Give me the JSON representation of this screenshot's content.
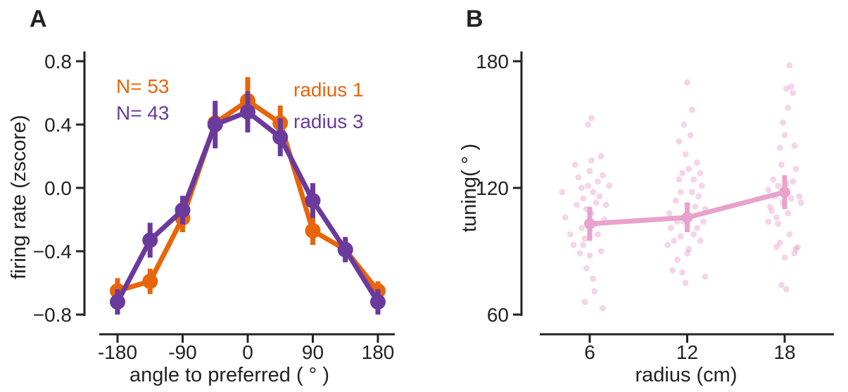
{
  "chart_data": [
    {
      "panel": "A",
      "type": "line",
      "xlabel": "angle to preferred ( ° )",
      "ylabel": "firing rate (zscore)",
      "xlim": [
        -180,
        180
      ],
      "ylim": [
        -0.8,
        0.8
      ],
      "xticks": [
        -180,
        -90,
        0,
        90,
        180
      ],
      "xtick_labels": [
        "-180",
        "-90",
        "0",
        "90",
        "180"
      ],
      "yticks": [
        -0.8,
        -0.4,
        0.0,
        0.4,
        0.8
      ],
      "ytick_labels": [
        "−0.8",
        "−0.4",
        "0.0",
        "0.4",
        "0.8"
      ],
      "x": [
        -180,
        -135,
        -90,
        -45,
        0,
        45,
        90,
        135,
        180
      ],
      "series": [
        {
          "name": "radius 1",
          "n_label": "N= 53",
          "color": "#e8650a",
          "values": [
            -0.65,
            -0.59,
            -0.19,
            0.41,
            0.55,
            0.41,
            -0.27,
            -0.39,
            -0.65
          ],
          "errors": [
            0.08,
            0.08,
            0.09,
            0.07,
            0.15,
            0.11,
            0.09,
            0.07,
            0.06
          ]
        },
        {
          "name": "radius 3",
          "n_label": "N= 43",
          "color": "#6a3a9c",
          "values": [
            -0.72,
            -0.33,
            -0.14,
            0.4,
            0.48,
            0.32,
            -0.08,
            -0.39,
            -0.72
          ],
          "errors": [
            0.08,
            0.11,
            0.09,
            0.15,
            0.13,
            0.12,
            0.11,
            0.08,
            0.08
          ]
        }
      ]
    },
    {
      "panel": "B",
      "type": "scatter",
      "xlabel": "radius (cm)",
      "ylabel": "tuning( ° )",
      "xlim": [
        1,
        23
      ],
      "ylim": [
        60,
        180
      ],
      "xticks": [
        6,
        12,
        18
      ],
      "xtick_labels": [
        "6",
        "12",
        "18"
      ],
      "yticks": [
        60,
        120,
        180
      ],
      "ytick_labels": [
        "60",
        "120",
        "180"
      ],
      "color": "#e8a2cc",
      "mean": {
        "x": [
          6,
          12,
          18
        ],
        "values": [
          103,
          106,
          118
        ],
        "errors": [
          8,
          7,
          8
        ]
      },
      "points": [
        [
          4.3,
          118
        ],
        [
          4.5,
          106
        ],
        [
          4.8,
          98
        ],
        [
          5.0,
          93
        ],
        [
          5.1,
          131
        ],
        [
          5.2,
          112
        ],
        [
          5.3,
          125
        ],
        [
          5.4,
          89
        ],
        [
          5.5,
          120
        ],
        [
          5.5,
          101
        ],
        [
          5.6,
          115
        ],
        [
          5.7,
          96
        ],
        [
          5.8,
          110
        ],
        [
          5.8,
          82
        ],
        [
          5.9,
          121
        ],
        [
          5.9,
          150
        ],
        [
          6.0,
          128
        ],
        [
          6.0,
          88
        ],
        [
          6.1,
          153
        ],
        [
          6.1,
          108
        ],
        [
          6.1,
          133
        ],
        [
          6.2,
          77
        ],
        [
          6.2,
          118
        ],
        [
          6.3,
          71
        ],
        [
          6.3,
          103
        ],
        [
          6.4,
          113
        ],
        [
          6.5,
          123
        ],
        [
          6.5,
          98
        ],
        [
          6.6,
          116
        ],
        [
          6.7,
          90
        ],
        [
          6.7,
          135
        ],
        [
          6.8,
          126
        ],
        [
          6.8,
          63
        ],
        [
          6.9,
          105
        ],
        [
          7.0,
          112
        ],
        [
          7.2,
          121
        ],
        [
          5.6,
          93
        ],
        [
          5.7,
          66
        ],
        [
          10.8,
          93
        ],
        [
          10.9,
          108
        ],
        [
          11.0,
          101
        ],
        [
          11.1,
          81
        ],
        [
          11.2,
          95
        ],
        [
          11.3,
          114
        ],
        [
          11.4,
          86
        ],
        [
          11.5,
          124
        ],
        [
          11.5,
          142
        ],
        [
          11.6,
          118
        ],
        [
          11.6,
          97
        ],
        [
          11.7,
          80
        ],
        [
          11.7,
          127
        ],
        [
          11.8,
          104
        ],
        [
          11.8,
          150
        ],
        [
          11.9,
          136
        ],
        [
          11.9,
          75
        ],
        [
          12.0,
          112
        ],
        [
          12.0,
          170
        ],
        [
          12.1,
          91
        ],
        [
          12.1,
          129
        ],
        [
          12.2,
          106
        ],
        [
          12.2,
          145
        ],
        [
          12.3,
          118
        ],
        [
          12.3,
          157
        ],
        [
          12.4,
          98
        ],
        [
          12.4,
          124
        ],
        [
          12.5,
          111
        ],
        [
          12.6,
          132
        ],
        [
          12.6,
          101
        ],
        [
          12.7,
          116
        ],
        [
          12.8,
          127
        ],
        [
          12.8,
          95
        ],
        [
          12.9,
          121
        ],
        [
          13.0,
          104
        ],
        [
          13.1,
          110
        ],
        [
          13.1,
          78
        ],
        [
          12.0,
          89
        ],
        [
          11.4,
          104
        ],
        [
          17.0,
          119
        ],
        [
          17.0,
          104
        ],
        [
          17.1,
          111
        ],
        [
          17.2,
          109
        ],
        [
          17.3,
          124
        ],
        [
          17.4,
          116
        ],
        [
          17.5,
          106
        ],
        [
          17.5,
          92
        ],
        [
          17.6,
          103
        ],
        [
          17.7,
          94
        ],
        [
          17.7,
          139
        ],
        [
          17.8,
          74
        ],
        [
          17.8,
          131
        ],
        [
          17.9,
          113
        ],
        [
          17.9,
          151
        ],
        [
          18.0,
          87
        ],
        [
          18.0,
          145
        ],
        [
          18.1,
          72
        ],
        [
          18.1,
          122
        ],
        [
          18.2,
          108
        ],
        [
          18.2,
          158
        ],
        [
          18.3,
          178
        ],
        [
          18.3,
          98
        ],
        [
          18.4,
          168
        ],
        [
          18.4,
          115
        ],
        [
          18.5,
          123
        ],
        [
          18.5,
          165
        ],
        [
          18.6,
          140
        ],
        [
          18.6,
          89
        ],
        [
          18.7,
          91
        ],
        [
          18.7,
          129
        ],
        [
          18.8,
          92
        ],
        [
          18.9,
          116
        ],
        [
          19.0,
          113
        ],
        [
          18.1,
          167
        ],
        [
          17.6,
          121
        ]
      ]
    }
  ]
}
